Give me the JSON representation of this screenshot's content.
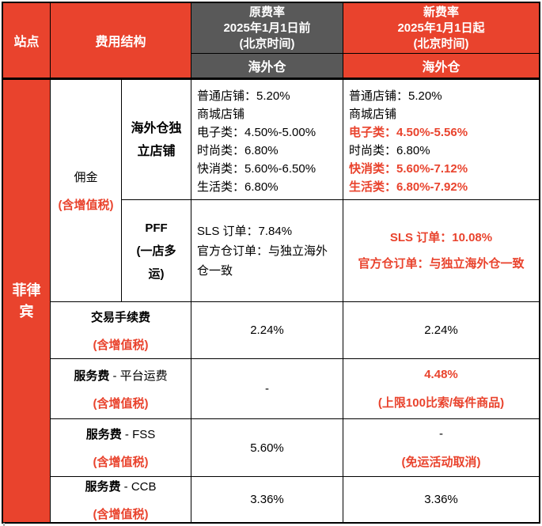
{
  "colors": {
    "red": "#E9432D",
    "gray": "#595959"
  },
  "header": {
    "site": "站点",
    "fee_structure": "费用结构",
    "old_title": "原费率",
    "old_date": "2025年1月1日前",
    "old_tz": "(北京时间)",
    "old_sub": "海外仓",
    "new_title": "新费率",
    "new_date": "2025年1月1日起",
    "new_tz": "(北京时间)",
    "new_sub": "海外仓"
  },
  "site": {
    "name": "菲律宾"
  },
  "commission": {
    "name": "佣金",
    "vat": "(含增值税)",
    "independent": {
      "label": "海外仓独立店铺",
      "old_lines": [
        {
          "text": "普通店铺：5.20%",
          "color": "black"
        },
        {
          "text": "商城店铺",
          "color": "black"
        },
        {
          "text": "电子类：4.50%-5.00%",
          "color": "black"
        },
        {
          "text": "时尚类：6.80%",
          "color": "black"
        },
        {
          "text": "快消类：5.60%-6.50%",
          "color": "black"
        },
        {
          "text": "生活类：6.80%",
          "color": "black"
        }
      ],
      "new_lines": [
        {
          "text": "普通店铺：5.20%",
          "color": "black"
        },
        {
          "text": "商城店铺",
          "color": "black"
        },
        {
          "text": "电子类：4.50%-5.56%",
          "color": "red"
        },
        {
          "text": "时尚类：6.80%",
          "color": "black"
        },
        {
          "text": "快消类：5.60%-7.12%",
          "color": "red"
        },
        {
          "text": "生活类：6.80%-7.92%",
          "color": "red"
        }
      ]
    },
    "pff": {
      "label1": "PFF",
      "label2": "(一店多运)",
      "old_lines": [
        {
          "text": "SLS 订单：7.84%",
          "color": "black"
        },
        {
          "text": "官方仓订单：与独立海外仓一致",
          "color": "black"
        }
      ],
      "new_lines": [
        {
          "text": "SLS 订单：10.08%",
          "color": "red"
        },
        {
          "text": "官方仓订单：与独立海外仓一致",
          "color": "red"
        }
      ]
    }
  },
  "fees": {
    "transaction": {
      "name": "交易手续费",
      "rest": "",
      "vat": "(含增值税)",
      "old_lines": [
        {
          "text": "2.24%",
          "color": "black"
        }
      ],
      "new_lines": [
        {
          "text": "2.24%",
          "color": "black"
        }
      ]
    },
    "platform_shipping": {
      "name": "服务费",
      "rest": " - 平台运费",
      "vat": "(含增值税)",
      "old_lines": [
        {
          "text": "-",
          "color": "black"
        }
      ],
      "new_lines": [
        {
          "text": "4.48%",
          "color": "red"
        },
        {
          "text": "(上限100比索/每件商品)",
          "color": "red"
        }
      ]
    },
    "fss": {
      "name": "服务费",
      "rest": " - FSS",
      "vat": "(含增值税)",
      "old_lines": [
        {
          "text": "5.60%",
          "color": "black"
        }
      ],
      "new_lines": [
        {
          "text": "-",
          "color": "black"
        },
        {
          "text": "(免运活动取消)",
          "color": "red"
        }
      ]
    },
    "ccb": {
      "name": "服务费",
      "rest": " - CCB",
      "vat": "(含增值税)",
      "old_lines": [
        {
          "text": "3.36%",
          "color": "black"
        }
      ],
      "new_lines": [
        {
          "text": "3.36%",
          "color": "black"
        }
      ]
    }
  },
  "chart_data": {
    "type": "table",
    "columns": [
      "站点",
      "费用结构",
      "原费率 2025年1月1日前(北京时间) — 海外仓",
      "新费率 2025年1月1日起(北京时间) — 海外仓"
    ],
    "rows": [
      [
        "菲律宾",
        "佣金(含增值税) / 海外仓独立店铺",
        "普通店铺：5.20%；商城店铺 电子类：4.50%-5.00%；时尚类：6.80%；快消类：5.60%-6.50%；生活类：6.80%",
        "普通店铺：5.20%；商城店铺 电子类：4.50%-5.56%；时尚类：6.80%；快消类：5.60%-7.12%；生活类：6.80%-7.92%"
      ],
      [
        "菲律宾",
        "佣金(含增值税) / PFF(一店多运)",
        "SLS 订单：7.84%；官方仓订单：与独立海外仓一致",
        "SLS 订单：10.08%；官方仓订单：与独立海外仓一致"
      ],
      [
        "菲律宾",
        "交易手续费(含增值税)",
        "2.24%",
        "2.24%"
      ],
      [
        "菲律宾",
        "服务费 - 平台运费(含增值税)",
        "-",
        "4.48% (上限100比索/每件商品)"
      ],
      [
        "菲律宾",
        "服务费 - FSS(含增值税)",
        "5.60%",
        "- (免运活动取消)"
      ],
      [
        "菲律宾",
        "服务费 - CCB(含增值税)",
        "3.36%",
        "3.36%"
      ]
    ]
  }
}
